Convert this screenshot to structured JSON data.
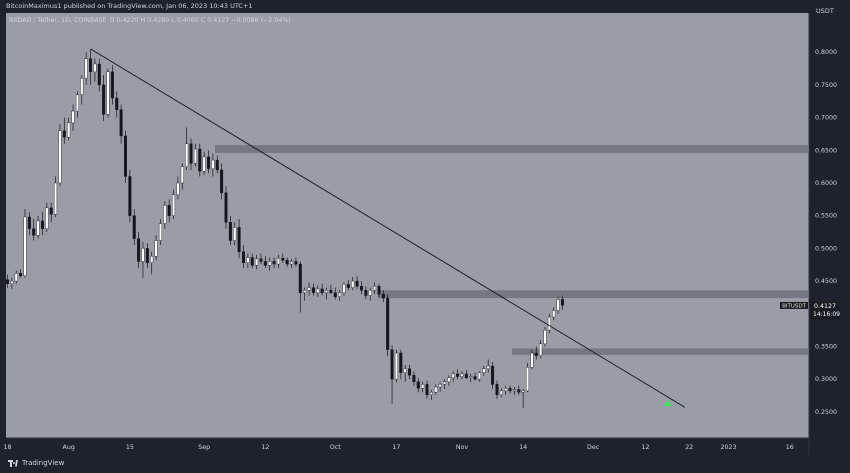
{
  "header": {
    "published_by": "BitcoinMaximus1 published on TradingView.com, Jan 06, 2023 10:43 UTC+1",
    "currency": "USDT"
  },
  "footer": {
    "brand": "TradingView"
  },
  "colors": {
    "background": "#9a9ca6",
    "frame": "#1e222d",
    "candle_up": "#ffffff",
    "candle_down": "#14161c",
    "zone": "#6e717b",
    "trendline": "#202225",
    "arrow": "#44e060"
  },
  "chart_data": {
    "type": "candlestick",
    "title": "BitDAO / Tether, 1D, COINBASE",
    "ohlc_text": "O 0.4220  H 0.4280  L 0.4060  C 0.4127  −0.0086 (−2.04%)",
    "ylim": [
      0.21,
      0.86
    ],
    "y_ticks": [
      0.25,
      0.3,
      0.35,
      0.4,
      0.45,
      0.5,
      0.55,
      0.6,
      0.65,
      0.7,
      0.75,
      0.8
    ],
    "y_tick_labels": [
      "0.2500",
      "0.3000",
      "0.3500",
      "0.4000",
      "0.4500",
      "0.5000",
      "0.5500",
      "0.6000",
      "0.6500",
      "0.7000",
      "0.7500",
      "0.8000"
    ],
    "x_ticks": [
      {
        "day": 0,
        "label": "18"
      },
      {
        "day": 14,
        "label": "Aug"
      },
      {
        "day": 28,
        "label": "15"
      },
      {
        "day": 45,
        "label": "Sep"
      },
      {
        "day": 59,
        "label": "12"
      },
      {
        "day": 75,
        "label": "Oct"
      },
      {
        "day": 89,
        "label": "17"
      },
      {
        "day": 104,
        "label": "Nov"
      },
      {
        "day": 118,
        "label": "14"
      },
      {
        "day": 134,
        "label": "Dec"
      },
      {
        "day": 146,
        "label": "12"
      },
      {
        "day": 156,
        "label": "22"
      },
      {
        "day": 165,
        "label": "2023"
      },
      {
        "day": 179,
        "label": "16"
      }
    ],
    "zones": [
      {
        "y1": 0.646,
        "y2": 0.658
      },
      {
        "y1": 0.424,
        "y2": 0.436
      },
      {
        "y1": 0.337,
        "y2": 0.347
      }
    ],
    "trendline": {
      "x1": 19,
      "y1": 0.805,
      "x2": 155,
      "y2": 0.257
    },
    "last_price": {
      "value": 0.4127,
      "label": "0.4127",
      "symbol": "BITUSDT",
      "countdown": "14:16:09"
    },
    "arrow": {
      "day": 151,
      "value": 0.262
    },
    "candles": [
      [
        0.452,
        0.46,
        0.44,
        0.446
      ],
      [
        0.446,
        0.455,
        0.438,
        0.45
      ],
      [
        0.45,
        0.466,
        0.446,
        0.462
      ],
      [
        0.462,
        0.468,
        0.455,
        0.458
      ],
      [
        0.458,
        0.56,
        0.455,
        0.548
      ],
      [
        0.548,
        0.555,
        0.52,
        0.53
      ],
      [
        0.53,
        0.545,
        0.512,
        0.52
      ],
      [
        0.52,
        0.55,
        0.515,
        0.542
      ],
      [
        0.542,
        0.556,
        0.52,
        0.53
      ],
      [
        0.53,
        0.57,
        0.525,
        0.562
      ],
      [
        0.562,
        0.57,
        0.54,
        0.552
      ],
      [
        0.552,
        0.61,
        0.548,
        0.6
      ],
      [
        0.6,
        0.69,
        0.595,
        0.68
      ],
      [
        0.68,
        0.7,
        0.66,
        0.67
      ],
      [
        0.67,
        0.7,
        0.665,
        0.692
      ],
      [
        0.692,
        0.72,
        0.68,
        0.71
      ],
      [
        0.71,
        0.74,
        0.7,
        0.735
      ],
      [
        0.735,
        0.765,
        0.72,
        0.76
      ],
      [
        0.76,
        0.8,
        0.75,
        0.79
      ],
      [
        0.79,
        0.805,
        0.75,
        0.77
      ],
      [
        0.77,
        0.79,
        0.755,
        0.782
      ],
      [
        0.782,
        0.79,
        0.74,
        0.75
      ],
      [
        0.75,
        0.765,
        0.695,
        0.705
      ],
      [
        0.705,
        0.775,
        0.7,
        0.77
      ],
      [
        0.77,
        0.78,
        0.72,
        0.73
      ],
      [
        0.73,
        0.74,
        0.7,
        0.712
      ],
      [
        0.712,
        0.72,
        0.66,
        0.672
      ],
      [
        0.672,
        0.68,
        0.6,
        0.61
      ],
      [
        0.61,
        0.62,
        0.54,
        0.55
      ],
      [
        0.55,
        0.56,
        0.505,
        0.515
      ],
      [
        0.515,
        0.525,
        0.47,
        0.48
      ],
      [
        0.48,
        0.51,
        0.455,
        0.5
      ],
      [
        0.5,
        0.508,
        0.47,
        0.478
      ],
      [
        0.478,
        0.495,
        0.46,
        0.488
      ],
      [
        0.488,
        0.52,
        0.482,
        0.512
      ],
      [
        0.512,
        0.545,
        0.505,
        0.538
      ],
      [
        0.538,
        0.572,
        0.53,
        0.566
      ],
      [
        0.566,
        0.575,
        0.54,
        0.55
      ],
      [
        0.55,
        0.59,
        0.545,
        0.582
      ],
      [
        0.582,
        0.61,
        0.575,
        0.6
      ],
      [
        0.6,
        0.63,
        0.59,
        0.625
      ],
      [
        0.625,
        0.685,
        0.62,
        0.66
      ],
      [
        0.66,
        0.668,
        0.62,
        0.63
      ],
      [
        0.63,
        0.66,
        0.625,
        0.652
      ],
      [
        0.652,
        0.66,
        0.61,
        0.618
      ],
      [
        0.618,
        0.648,
        0.612,
        0.64
      ],
      [
        0.64,
        0.65,
        0.615,
        0.622
      ],
      [
        0.622,
        0.645,
        0.61,
        0.635
      ],
      [
        0.635,
        0.642,
        0.615,
        0.62
      ],
      [
        0.62,
        0.63,
        0.575,
        0.585
      ],
      [
        0.585,
        0.595,
        0.53,
        0.54
      ],
      [
        0.54,
        0.55,
        0.505,
        0.512
      ],
      [
        0.512,
        0.54,
        0.505,
        0.532
      ],
      [
        0.532,
        0.545,
        0.485,
        0.495
      ],
      [
        0.495,
        0.505,
        0.47,
        0.478
      ],
      [
        0.478,
        0.492,
        0.47,
        0.486
      ],
      [
        0.486,
        0.492,
        0.47,
        0.474
      ],
      [
        0.474,
        0.49,
        0.468,
        0.484
      ],
      [
        0.484,
        0.492,
        0.476,
        0.48
      ],
      [
        0.48,
        0.488,
        0.47,
        0.474
      ],
      [
        0.474,
        0.486,
        0.466,
        0.48
      ],
      [
        0.48,
        0.486,
        0.47,
        0.476
      ],
      [
        0.476,
        0.49,
        0.47,
        0.485
      ],
      [
        0.485,
        0.492,
        0.478,
        0.482
      ],
      [
        0.482,
        0.486,
        0.472,
        0.476
      ],
      [
        0.476,
        0.484,
        0.47,
        0.48
      ],
      [
        0.48,
        0.486,
        0.472,
        0.476
      ],
      [
        0.476,
        0.48,
        0.402,
        0.432
      ],
      [
        0.432,
        0.44,
        0.42,
        0.436
      ],
      [
        0.436,
        0.448,
        0.428,
        0.44
      ],
      [
        0.44,
        0.446,
        0.428,
        0.432
      ],
      [
        0.432,
        0.444,
        0.426,
        0.438
      ],
      [
        0.438,
        0.446,
        0.428,
        0.432
      ],
      [
        0.432,
        0.44,
        0.422,
        0.436
      ],
      [
        0.436,
        0.444,
        0.43,
        0.432
      ],
      [
        0.432,
        0.44,
        0.422,
        0.426
      ],
      [
        0.426,
        0.436,
        0.42,
        0.432
      ],
      [
        0.432,
        0.448,
        0.428,
        0.445
      ],
      [
        0.445,
        0.452,
        0.436,
        0.44
      ],
      [
        0.44,
        0.456,
        0.436,
        0.45
      ],
      [
        0.45,
        0.458,
        0.438,
        0.442
      ],
      [
        0.442,
        0.45,
        0.43,
        0.436
      ],
      [
        0.436,
        0.442,
        0.422,
        0.428
      ],
      [
        0.428,
        0.44,
        0.42,
        0.436
      ],
      [
        0.436,
        0.448,
        0.43,
        0.442
      ],
      [
        0.442,
        0.446,
        0.425,
        0.43
      ],
      [
        0.43,
        0.436,
        0.418,
        0.424
      ],
      [
        0.424,
        0.43,
        0.335,
        0.345
      ],
      [
        0.345,
        0.352,
        0.262,
        0.3
      ],
      [
        0.3,
        0.345,
        0.295,
        0.34
      ],
      [
        0.34,
        0.345,
        0.3,
        0.31
      ],
      [
        0.31,
        0.322,
        0.296,
        0.316
      ],
      [
        0.316,
        0.322,
        0.3,
        0.306
      ],
      [
        0.306,
        0.312,
        0.29,
        0.296
      ],
      [
        0.296,
        0.302,
        0.28,
        0.286
      ],
      [
        0.286,
        0.296,
        0.28,
        0.292
      ],
      [
        0.292,
        0.298,
        0.27,
        0.276
      ],
      [
        0.276,
        0.284,
        0.268,
        0.28
      ],
      [
        0.28,
        0.292,
        0.276,
        0.288
      ],
      [
        0.288,
        0.295,
        0.28,
        0.292
      ],
      [
        0.292,
        0.3,
        0.285,
        0.296
      ],
      [
        0.296,
        0.306,
        0.29,
        0.302
      ],
      [
        0.302,
        0.312,
        0.296,
        0.308
      ],
      [
        0.308,
        0.315,
        0.3,
        0.304
      ],
      [
        0.304,
        0.312,
        0.3,
        0.308
      ],
      [
        0.308,
        0.314,
        0.3,
        0.302
      ],
      [
        0.302,
        0.308,
        0.295,
        0.304
      ],
      [
        0.304,
        0.31,
        0.298,
        0.3
      ],
      [
        0.3,
        0.312,
        0.296,
        0.31
      ],
      [
        0.31,
        0.32,
        0.305,
        0.316
      ],
      [
        0.316,
        0.33,
        0.31,
        0.32
      ],
      [
        0.32,
        0.326,
        0.285,
        0.292
      ],
      [
        0.292,
        0.298,
        0.27,
        0.276
      ],
      [
        0.276,
        0.286,
        0.272,
        0.282
      ],
      [
        0.282,
        0.29,
        0.276,
        0.286
      ],
      [
        0.286,
        0.29,
        0.278,
        0.282
      ],
      [
        0.282,
        0.288,
        0.276,
        0.284
      ],
      [
        0.284,
        0.29,
        0.276,
        0.28
      ],
      [
        0.28,
        0.285,
        0.256,
        0.282
      ],
      [
        0.282,
        0.325,
        0.28,
        0.318
      ],
      [
        0.318,
        0.345,
        0.315,
        0.34
      ],
      [
        0.34,
        0.35,
        0.33,
        0.336
      ],
      [
        0.336,
        0.36,
        0.332,
        0.354
      ],
      [
        0.354,
        0.38,
        0.35,
        0.375
      ],
      [
        0.375,
        0.4,
        0.37,
        0.395
      ],
      [
        0.395,
        0.41,
        0.39,
        0.405
      ],
      [
        0.405,
        0.426,
        0.4,
        0.422
      ],
      [
        0.422,
        0.428,
        0.406,
        0.413
      ]
    ]
  }
}
